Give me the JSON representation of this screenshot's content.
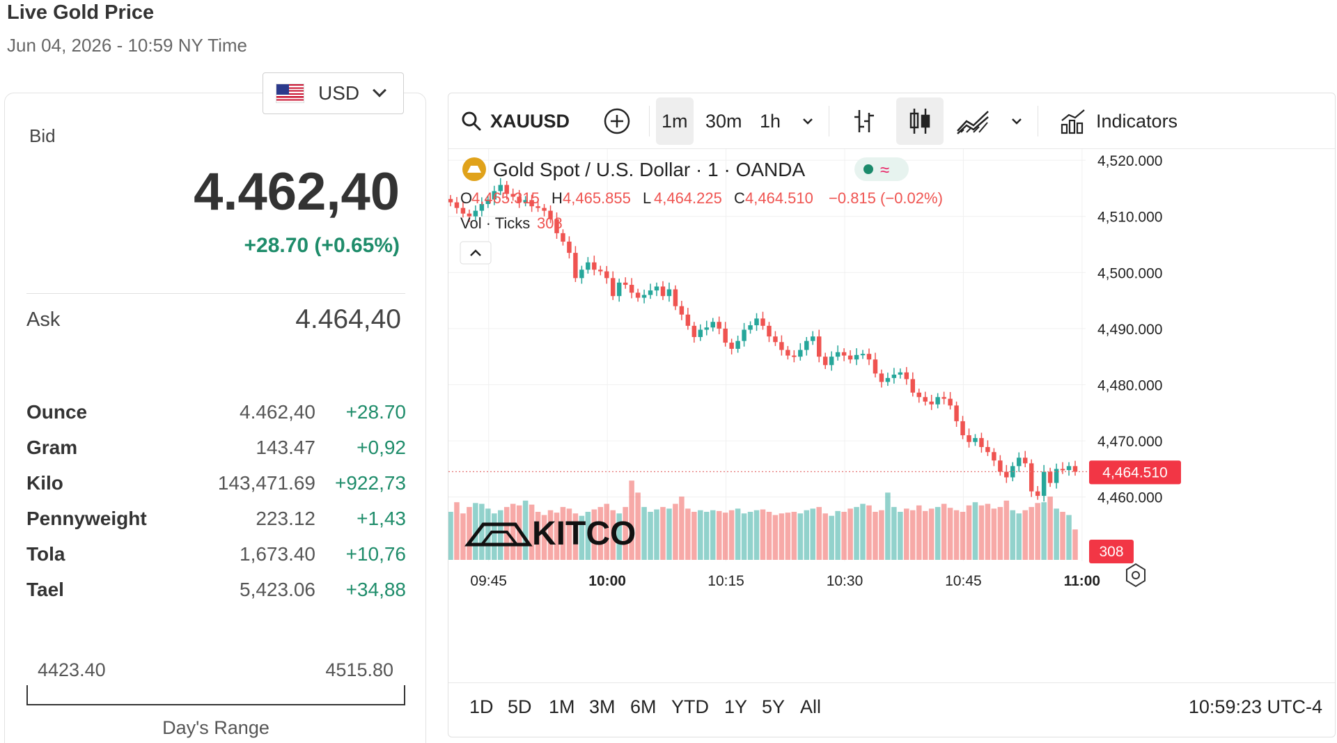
{
  "header": {
    "title": "Live Gold Price",
    "subtitle": "Jun 04, 2026 - 10:59 NY Time"
  },
  "currency": {
    "label": "USD",
    "flag_icon": "us-flag-icon"
  },
  "quote": {
    "bid_label": "Bid",
    "bid_value": "4.462,40",
    "bid_change": "+28.70 (+0.65%)",
    "ask_label": "Ask",
    "ask_value": "4.464,40"
  },
  "units": [
    {
      "name": "Ounce",
      "price": "4.462,40",
      "change": "+28.70"
    },
    {
      "name": "Gram",
      "price": "143.47",
      "change": "+0,92"
    },
    {
      "name": "Kilo",
      "price": "143,471.69",
      "change": "+922,73"
    },
    {
      "name": "Pennyweight",
      "price": "223.12",
      "change": "+1,43"
    },
    {
      "name": "Tola",
      "price": "1,673.40",
      "change": "+10,76"
    },
    {
      "name": "Tael",
      "price": "5,423.06",
      "change": "+34,88"
    }
  ],
  "day_range": {
    "low": "4423.40",
    "high": "4515.80",
    "label": "Day's Range"
  },
  "toolbar": {
    "symbol": "XAUUSD",
    "intervals": [
      "1m",
      "30m",
      "1h"
    ],
    "selected_interval": "1m",
    "indicators_label": "Indicators"
  },
  "chart_legend": {
    "title": "Gold Spot / U.S. Dollar · 1 · OANDA",
    "o_label": "O",
    "o_value": "4,465.315",
    "h_label": "H",
    "h_value": "4,465.855",
    "l_label": "L",
    "l_value": "4,464.225",
    "c_label": "C",
    "c_value": "4,464.510",
    "change": "−0.815 (−0.02%)",
    "vol_label": "Vol · Ticks",
    "vol_value": "308"
  },
  "watermark": "KITCO",
  "current_price_tag": "4,464.510",
  "volume_tag": "308",
  "ranges": [
    "1D",
    "5D",
    "1M",
    "3M",
    "6M",
    "YTD",
    "1Y",
    "5Y",
    "All"
  ],
  "clock": "10:59:23 UTC-4",
  "colors": {
    "up": "#26a69a",
    "down": "#ef5350",
    "accent_green": "#1e8c6a"
  },
  "chart_data": {
    "type": "candlestick",
    "symbol": "XAUUSD",
    "interval": "1m",
    "y_tick_labels": [
      "4,520.000",
      "4,510.000",
      "4,500.000",
      "4,490.000",
      "4,480.000",
      "4,470.000",
      "4,460.000"
    ],
    "y_ticks": [
      4520,
      4510,
      4500,
      4490,
      4480,
      4470,
      4460
    ],
    "ylim": [
      4455,
      4522
    ],
    "x_ticks": [
      {
        "label": "09:45",
        "index": 10,
        "bold": false
      },
      {
        "label": "10:00",
        "index": 29,
        "bold": true
      },
      {
        "label": "10:15",
        "index": 48,
        "bold": false
      },
      {
        "label": "10:30",
        "index": 67,
        "bold": false
      },
      {
        "label": "10:45",
        "index": 86,
        "bold": false
      },
      {
        "label": "11:00",
        "index": 105,
        "bold": true
      }
    ],
    "current_price": 4464.51,
    "close_points": [
      4512.5,
      4511.5,
      4510.5,
      4510.0,
      4511.0,
      4512.2,
      4513.0,
      4514.5,
      4515.6,
      4514.0,
      4513.5,
      4512.5,
      4512.9,
      4511.8,
      4511.5,
      4511.0,
      4509.5,
      4507.0,
      4505.5,
      4503.5,
      4499.0,
      4500.5,
      4501.8,
      4500.5,
      4500.2,
      4499.0,
      4495.8,
      4498.2,
      4497.8,
      4496.4,
      4495.5,
      4496.0,
      4496.8,
      4497.5,
      4495.8,
      4497.0,
      4494.0,
      4492.5,
      4490.5,
      4488.5,
      4489.8,
      4490.2,
      4491.2,
      4490.0,
      4487.5,
      4486.4,
      4487.8,
      4489.8,
      4490.6,
      4491.8,
      4490.5,
      4488.6,
      4487.6,
      4486.2,
      4485.2,
      4485.0,
      4486.2,
      4487.8,
      4488.6,
      4485.0,
      4483.5,
      4485.0,
      4485.8,
      4485.2,
      4484.5,
      4485.3,
      4485.5,
      4484.5,
      4482.0,
      4480.5,
      4481.2,
      4481.8,
      4482.2,
      4481.0,
      4478.6,
      4477.8,
      4477.0,
      4476.5,
      4477.8,
      4477.5,
      4476.3,
      4473.5,
      4471.0,
      4469.8,
      4470.5,
      4468.9,
      4468.0,
      4466.5,
      4464.5,
      4463.5,
      4465.5,
      4467.0,
      4466.0,
      4461.0,
      4460.2,
      4464.5,
      4462.5,
      4465.0,
      4464.8,
      4465.5,
      4464.5
    ],
    "volume": [
      60,
      72,
      58,
      66,
      71,
      70,
      64,
      58,
      62,
      66,
      70,
      68,
      74,
      69,
      60,
      56,
      62,
      59,
      66,
      64,
      58,
      55,
      60,
      63,
      66,
      70,
      62,
      58,
      66,
      99,
      84,
      66,
      60,
      63,
      66,
      64,
      70,
      79,
      64,
      60,
      62,
      60,
      62,
      61,
      59,
      62,
      64,
      58,
      60,
      62,
      63,
      60,
      56,
      58,
      59,
      60,
      58,
      62,
      64,
      66,
      58,
      55,
      61,
      60,
      64,
      66,
      70,
      68,
      60,
      62,
      84,
      66,
      60,
      64,
      62,
      68,
      61,
      64,
      66,
      70,
      65,
      62,
      60,
      68,
      72,
      68,
      70,
      64,
      66,
      74,
      62,
      58,
      62,
      66,
      71,
      72,
      79,
      64,
      60,
      56,
      38
    ]
  }
}
